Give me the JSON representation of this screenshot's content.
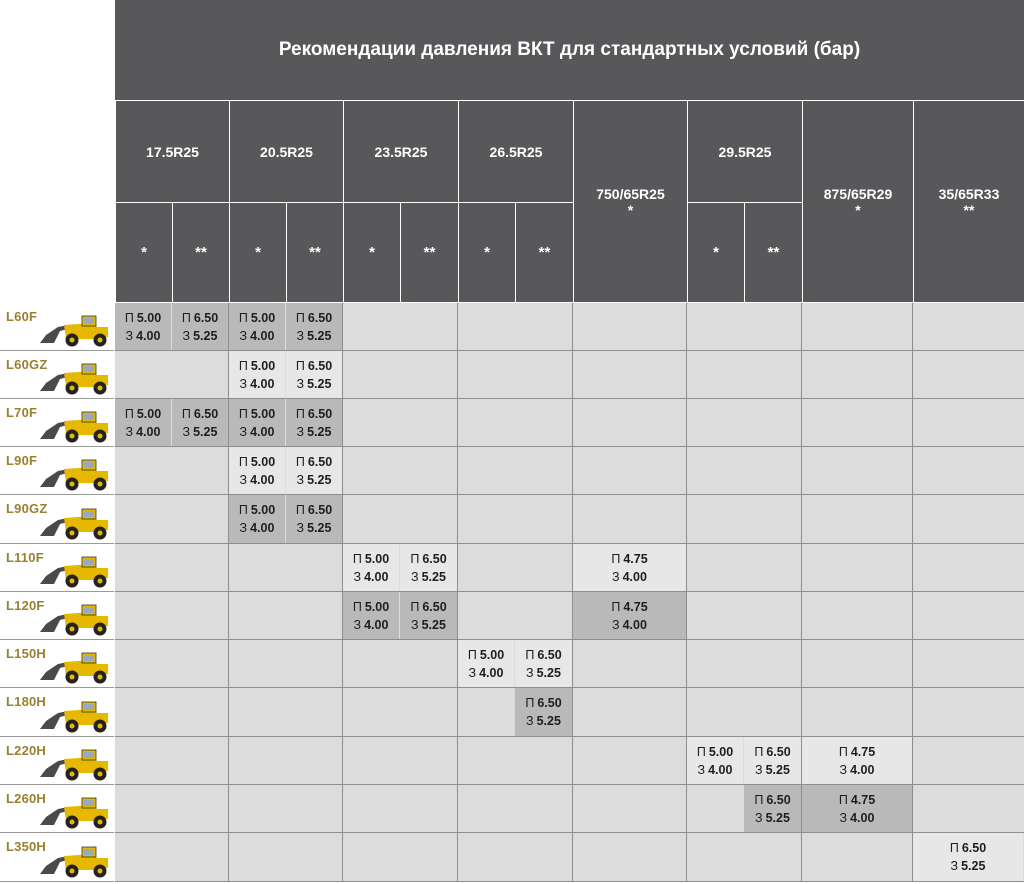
{
  "title": "Рекомендации давления ВКТ для стандартных условий (бар)",
  "colors": {
    "header": "#58585a",
    "cell_light": "#e7e7e7",
    "cell_dark": "#b9b9b9",
    "empty": "#dcdcdc",
    "model_name": "#9a8030"
  },
  "labels": {
    "front": "П",
    "rear": "З"
  },
  "tire_groups": [
    {
      "size": "17.5R25",
      "stars": [
        "*",
        "**"
      ]
    },
    {
      "size": "20.5R25",
      "stars": [
        "*",
        "**"
      ]
    },
    {
      "size": "23.5R25",
      "stars": [
        "*",
        "**"
      ]
    },
    {
      "size": "26.5R25",
      "stars": [
        "*",
        "**"
      ]
    },
    {
      "size": "750/65R25",
      "stars": [
        "*"
      ]
    },
    {
      "size": "29.5R25",
      "stars": [
        "*",
        "**"
      ]
    },
    {
      "size": "875/65R29",
      "stars": [
        "*"
      ]
    },
    {
      "size": "35/65R33",
      "stars": [
        "**"
      ]
    }
  ],
  "rows": [
    {
      "model": "L60F",
      "icon": "wheel-loader-icon",
      "cells": [
        {
          "col": 0,
          "front": "5.00",
          "rear": "4.00",
          "shade": "dark"
        },
        {
          "col": 1,
          "front": "6.50",
          "rear": "5.25",
          "shade": "dark"
        },
        {
          "col": 2,
          "front": "5.00",
          "rear": "4.00",
          "shade": "dark"
        },
        {
          "col": 3,
          "front": "6.50",
          "rear": "5.25",
          "shade": "dark"
        }
      ]
    },
    {
      "model": "L60GZ",
      "icon": "wheel-loader-icon",
      "cells": [
        {
          "col": 2,
          "front": "5.00",
          "rear": "4.00",
          "shade": "light"
        },
        {
          "col": 3,
          "front": "6.50",
          "rear": "5.25",
          "shade": "light"
        }
      ]
    },
    {
      "model": "L70F",
      "icon": "wheel-loader-icon",
      "cells": [
        {
          "col": 0,
          "front": "5.00",
          "rear": "4.00",
          "shade": "dark"
        },
        {
          "col": 1,
          "front": "6.50",
          "rear": "5.25",
          "shade": "dark"
        },
        {
          "col": 2,
          "front": "5.00",
          "rear": "4.00",
          "shade": "dark"
        },
        {
          "col": 3,
          "front": "6.50",
          "rear": "5.25",
          "shade": "dark"
        }
      ]
    },
    {
      "model": "L90F",
      "icon": "wheel-loader-icon",
      "cells": [
        {
          "col": 2,
          "front": "5.00",
          "rear": "4.00",
          "shade": "light"
        },
        {
          "col": 3,
          "front": "6.50",
          "rear": "5.25",
          "shade": "light"
        }
      ]
    },
    {
      "model": "L90GZ",
      "icon": "wheel-loader-icon",
      "cells": [
        {
          "col": 2,
          "front": "5.00",
          "rear": "4.00",
          "shade": "dark"
        },
        {
          "col": 3,
          "front": "6.50",
          "rear": "5.25",
          "shade": "dark"
        }
      ]
    },
    {
      "model": "L110F",
      "icon": "wheel-loader-icon",
      "cells": [
        {
          "col": 4,
          "front": "5.00",
          "rear": "4.00",
          "shade": "light"
        },
        {
          "col": 5,
          "front": "6.50",
          "rear": "5.25",
          "shade": "light"
        },
        {
          "col": 8,
          "front": "4.75",
          "rear": "4.00",
          "shade": "light"
        }
      ]
    },
    {
      "model": "L120F",
      "icon": "wheel-loader-icon",
      "cells": [
        {
          "col": 4,
          "front": "5.00",
          "rear": "4.00",
          "shade": "dark"
        },
        {
          "col": 5,
          "front": "6.50",
          "rear": "5.25",
          "shade": "dark"
        },
        {
          "col": 8,
          "front": "4.75",
          "rear": "4.00",
          "shade": "dark"
        }
      ]
    },
    {
      "model": "L150H",
      "icon": "wheel-loader-icon",
      "cells": [
        {
          "col": 6,
          "front": "5.00",
          "rear": "4.00",
          "shade": "light"
        },
        {
          "col": 7,
          "front": "6.50",
          "rear": "5.25",
          "shade": "light"
        }
      ]
    },
    {
      "model": "L180H",
      "icon": "wheel-loader-icon",
      "cells": [
        {
          "col": 7,
          "front": "6.50",
          "rear": "5.25",
          "shade": "dark"
        }
      ]
    },
    {
      "model": "L220H",
      "icon": "wheel-loader-icon",
      "cells": [
        {
          "col": 9,
          "front": "5.00",
          "rear": "4.00",
          "shade": "light"
        },
        {
          "col": 10,
          "front": "6.50",
          "rear": "5.25",
          "shade": "light"
        },
        {
          "col": 11,
          "front": "4.75",
          "rear": "4.00",
          "shade": "light"
        }
      ]
    },
    {
      "model": "L260H",
      "icon": "wheel-loader-icon",
      "cells": [
        {
          "col": 10,
          "front": "6.50",
          "rear": "5.25",
          "shade": "dark"
        },
        {
          "col": 11,
          "front": "4.75",
          "rear": "4.00",
          "shade": "dark"
        }
      ]
    },
    {
      "model": "L350H",
      "icon": "wheel-loader-icon",
      "cells": [
        {
          "col": 12,
          "front": "6.50",
          "rear": "5.25",
          "shade": "light"
        }
      ]
    }
  ]
}
